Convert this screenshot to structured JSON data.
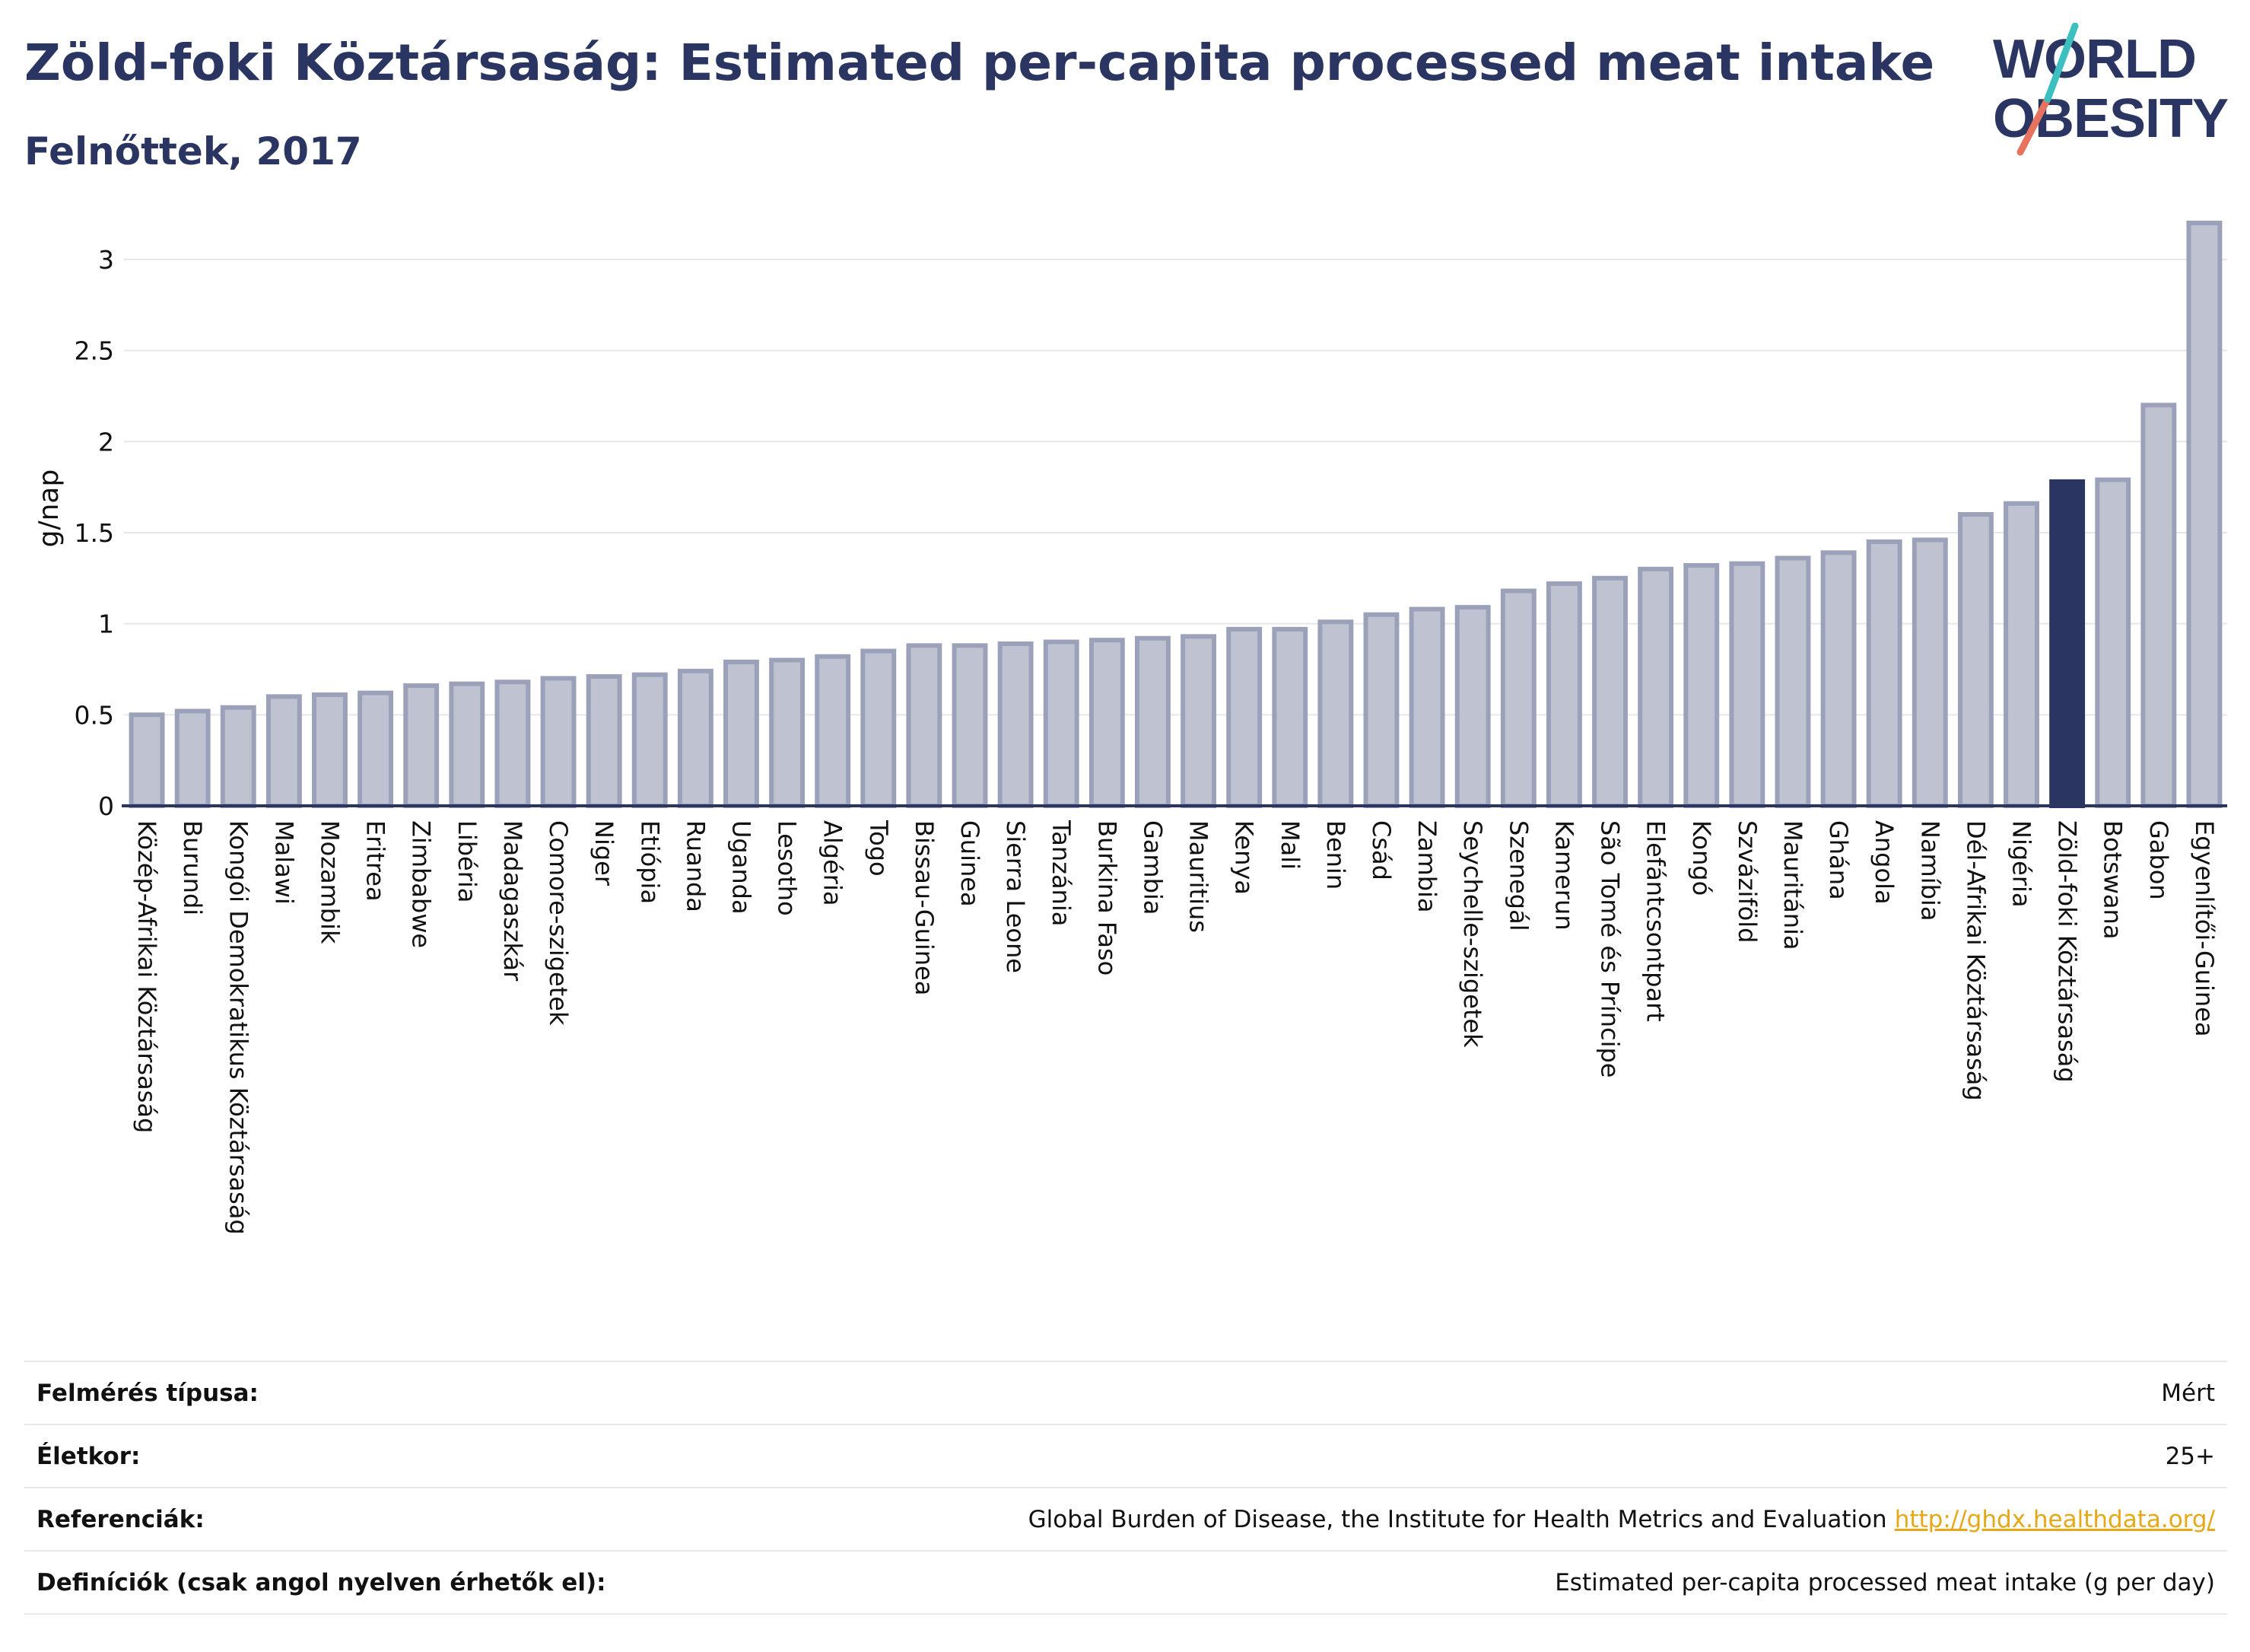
{
  "header": {
    "title": "Zöld-foki Köztársaság: Estimated per-capita processed meat intake",
    "subtitle": "Felnőttek, 2017"
  },
  "logo": {
    "line1": "WORLD",
    "line2": "OBESITY"
  },
  "chart_data": {
    "type": "bar",
    "ylabel": "g/nap",
    "ylim": [
      0,
      3.3
    ],
    "yticks": [
      0,
      0.5,
      1,
      1.5,
      2,
      2.5,
      3
    ],
    "ytick_labels": [
      "0",
      "0.5",
      "1",
      "1.5",
      "2",
      "2.5",
      "3"
    ],
    "grid": true,
    "highlight": "Zöld-foki Köztársaság",
    "colors": {
      "bar": "#bfc3d1",
      "bar_edge": "#9ba1b8",
      "highlight": "#2b3561",
      "axis": "#2b3561",
      "grid": "#e6e6ec"
    },
    "categories": [
      "Közép-Afrikai Köztársaság",
      "Burundi",
      "Kongói Demokratikus Köztársaság",
      "Malawi",
      "Mozambik",
      "Eritrea",
      "Zimbabwe",
      "Libéria",
      "Madagaszkár",
      "Comore-szigetek",
      "Niger",
      "Etiópia",
      "Ruanda",
      "Uganda",
      "Lesotho",
      "Algéria",
      "Togo",
      "Bissau-Guinea",
      "Guinea",
      "Sierra Leone",
      "Tanzánia",
      "Burkina Faso",
      "Gambia",
      "Mauritius",
      "Kenya",
      "Mali",
      "Benin",
      "Csád",
      "Zambia",
      "Seychelle-szigetek",
      "Szenegál",
      "Kamerun",
      "São Tomé és Príncipe",
      "Elefántcsontpart",
      "Kongó",
      "Szváziföld",
      "Mauritánia",
      "Ghána",
      "Angola",
      "Namíbia",
      "Dél-Afrikai Köztársaság",
      "Nigéria",
      "Zöld-foki Köztársaság",
      "Botswana",
      "Gabon",
      "Egyenlítői-Guinea"
    ],
    "values": [
      0.5,
      0.52,
      0.54,
      0.6,
      0.61,
      0.62,
      0.66,
      0.67,
      0.68,
      0.7,
      0.71,
      0.72,
      0.74,
      0.79,
      0.8,
      0.82,
      0.85,
      0.88,
      0.88,
      0.89,
      0.9,
      0.91,
      0.92,
      0.93,
      0.97,
      0.97,
      1.01,
      1.05,
      1.08,
      1.09,
      1.18,
      1.22,
      1.25,
      1.3,
      1.32,
      1.33,
      1.36,
      1.39,
      1.45,
      1.46,
      1.6,
      1.66,
      1.78,
      1.79,
      2.2,
      3.2
    ]
  },
  "info": [
    {
      "label": "Felmérés típusa:",
      "value": "Mért"
    },
    {
      "label": "Életkor:",
      "value": "25+"
    },
    {
      "label": "Referenciák:",
      "value": "Global Burden of Disease, the Institute for Health Metrics and Evaluation",
      "link": "http://ghdx.healthdata.org/"
    },
    {
      "label": "Definíciók (csak angol nyelven érhetők el):",
      "value": "Estimated per-capita processed meat intake (g per day)"
    }
  ]
}
